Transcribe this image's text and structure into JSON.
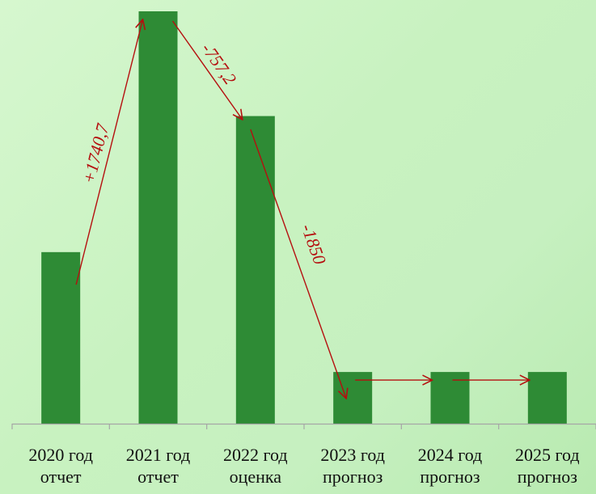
{
  "chart_data": {
    "type": "bar",
    "categories": [
      [
        "2020 год",
        "отчет"
      ],
      [
        "2021 год",
        "отчет"
      ],
      [
        "2022 год",
        "оценка"
      ],
      [
        "2023 год",
        "прогноз"
      ],
      [
        "2024 год",
        "прогноз"
      ],
      [
        "2025 год",
        "прогноз"
      ]
    ],
    "values": [
      1240,
      2980.7,
      2223.5,
      373.5,
      373.5,
      373.5
    ],
    "ylim": [
      0,
      3200
    ],
    "grid": false,
    "legend": "none",
    "colors": {
      "bar": "#2e8b35",
      "arrow": "#b50f0f",
      "axis": "#a6a6a6"
    },
    "annotations": [
      {
        "text": "+1740,7",
        "from": 0,
        "to": 1
      },
      {
        "text": "-757,2",
        "from": 1,
        "to": 2
      },
      {
        "text": "-1850",
        "from": 2,
        "to": 3
      }
    ],
    "flat_arrows": [
      {
        "from": 3,
        "to": 4
      },
      {
        "from": 4,
        "to": 5
      }
    ]
  }
}
